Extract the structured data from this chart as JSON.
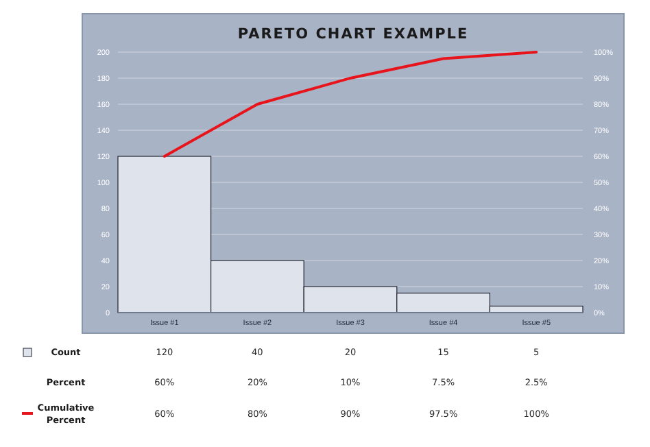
{
  "chart_data": {
    "type": "bar",
    "title": "PARETO CHART EXAMPLE",
    "categories": [
      "Issue #1",
      "Issue #2",
      "Issue #3",
      "Issue #4",
      "Issue #5"
    ],
    "series": [
      {
        "name": "Count",
        "color": "#dfe4ec",
        "values": [
          120,
          40,
          20,
          15,
          5
        ],
        "value_labels": [
          "120",
          "40",
          "20",
          "15",
          "5"
        ]
      },
      {
        "name": "Cumulative Percent",
        "type": "line",
        "axis": "y2",
        "color": "#e8141b",
        "values": [
          60,
          80,
          90,
          97.5,
          100
        ],
        "value_labels": [
          "60%",
          "80%",
          "90%",
          "97.5%",
          "100%"
        ]
      }
    ],
    "annotations": [
      "Percent",
      "60%",
      "20%",
      "10%",
      "7.5%",
      "2.5%"
    ],
    "ylim": [
      0,
      200
    ],
    "yticks": [
      0,
      20,
      40,
      60,
      80,
      100,
      120,
      140,
      160,
      180,
      200
    ],
    "y2lim": [
      0,
      100
    ],
    "y2ticks": [
      {
        "value": 0,
        "label": "0%"
      },
      {
        "value": 10,
        "label": "10%"
      },
      {
        "value": 20,
        "label": "20%"
      },
      {
        "value": 30,
        "label": "30%"
      },
      {
        "value": 40,
        "label": "40%"
      },
      {
        "value": 50,
        "label": "50%"
      },
      {
        "value": 60,
        "label": "60%"
      },
      {
        "value": 70,
        "label": "70%"
      },
      {
        "value": 80,
        "label": "80%"
      },
      {
        "value": 90,
        "label": "90%"
      },
      {
        "value": 100,
        "label": "100%"
      }
    ],
    "grid": "y",
    "legend": "bottom left",
    "marker": "none",
    "line_style": "solid"
  }
}
